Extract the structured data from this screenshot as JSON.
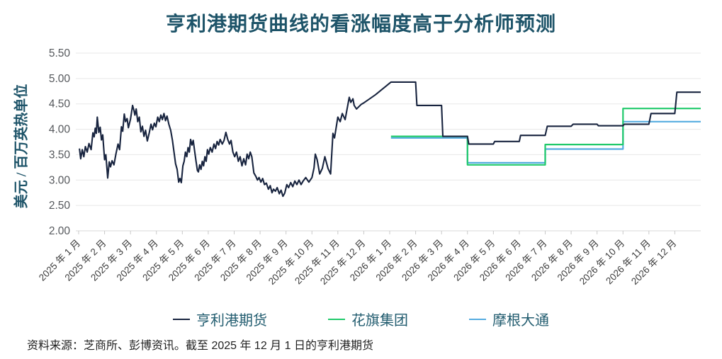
{
  "title": "亨利港期货曲线的看涨幅度高于分析师预测",
  "source_note": "资料来源：芝商所、彭博资讯。截至 2025 年 12 月 1 日的亨利港期货",
  "colors": {
    "title_teal": "#1e5469",
    "legend_text_teal": "#235d70",
    "futures_navy": "#18243f",
    "citi_green": "#1fc96a",
    "jpm_blue": "#55ace0",
    "tick_label_gray": "#55585c",
    "x_label_gray": "#3d3d3d",
    "grid_gray": "#e7e7e7"
  },
  "chart_data": {
    "type": "line",
    "title": "亨利港期货曲线的看涨幅度高于分析师预测",
    "ylabel": "美元 / 百万英热单位",
    "ylim": [
      2.0,
      5.5
    ],
    "yticks": [
      5.5,
      5.0,
      4.5,
      4.0,
      3.5,
      3.0,
      2.5,
      2.0
    ],
    "grid": "horizontal",
    "legend_position": "bottom",
    "x_scale": "month_index_0_equals_2025_01",
    "x_categories": [
      "2025 年 1 月",
      "2025 年 2 月",
      "2025 年 3 月",
      "2025 年 4 月",
      "2025 年 5 月",
      "2025 年 6 月",
      "2025 年 7 月",
      "2025 年 8 月",
      "2025 年 9 月",
      "2025 年 10 月",
      "2025 年 11 月",
      "2025 年 12 月",
      "2026 年 1 月",
      "2026 年 2 月",
      "2026 年 3 月",
      "2026 年 4 月",
      "2026 年 5 月",
      "2026 年 6 月",
      "2026 年 7 月",
      "2026 年 8 月",
      "2026 年 9 月",
      "2026 年 10 月",
      "2026 年 11 月",
      "2026 年 12 月"
    ],
    "series": [
      {
        "name": "亨利港期货",
        "color": "#18243f",
        "width": 2.1,
        "points": [
          [
            0.03,
            3.62
          ],
          [
            0.08,
            3.42
          ],
          [
            0.14,
            3.6
          ],
          [
            0.2,
            3.46
          ],
          [
            0.26,
            3.66
          ],
          [
            0.33,
            3.55
          ],
          [
            0.4,
            3.72
          ],
          [
            0.48,
            3.6
          ],
          [
            0.55,
            3.93
          ],
          [
            0.6,
            3.85
          ],
          [
            0.64,
            4.02
          ],
          [
            0.68,
            3.92
          ],
          [
            0.72,
            4.24
          ],
          [
            0.78,
            3.94
          ],
          [
            0.83,
            4.04
          ],
          [
            0.88,
            3.79
          ],
          [
            0.93,
            3.89
          ],
          [
            1.0,
            3.4
          ],
          [
            1.05,
            3.5
          ],
          [
            1.12,
            3.04
          ],
          [
            1.18,
            3.36
          ],
          [
            1.23,
            3.26
          ],
          [
            1.29,
            3.38
          ],
          [
            1.36,
            3.3
          ],
          [
            1.44,
            3.52
          ],
          [
            1.52,
            3.71
          ],
          [
            1.58,
            3.6
          ],
          [
            1.65,
            4.05
          ],
          [
            1.7,
            3.96
          ],
          [
            1.76,
            4.3
          ],
          [
            1.81,
            4.15
          ],
          [
            1.87,
            4.21
          ],
          [
            1.92,
            4.03
          ],
          [
            2.0,
            4.2
          ],
          [
            2.08,
            4.47
          ],
          [
            2.13,
            4.38
          ],
          [
            2.17,
            4.28
          ],
          [
            2.22,
            4.4
          ],
          [
            2.28,
            4.15
          ],
          [
            2.34,
            4.24
          ],
          [
            2.4,
            3.95
          ],
          [
            2.46,
            4.06
          ],
          [
            2.52,
            3.86
          ],
          [
            2.58,
            3.98
          ],
          [
            2.65,
            3.77
          ],
          [
            2.72,
            3.92
          ],
          [
            2.79,
            4.1
          ],
          [
            2.85,
            3.99
          ],
          [
            2.92,
            4.12
          ],
          [
            2.98,
            4.05
          ],
          [
            3.05,
            4.24
          ],
          [
            3.11,
            4.15
          ],
          [
            3.17,
            4.28
          ],
          [
            3.23,
            4.19
          ],
          [
            3.29,
            4.31
          ],
          [
            3.35,
            4.17
          ],
          [
            3.41,
            4.26
          ],
          [
            3.48,
            4.1
          ],
          [
            3.55,
            3.98
          ],
          [
            3.62,
            3.78
          ],
          [
            3.68,
            3.55
          ],
          [
            3.74,
            3.32
          ],
          [
            3.8,
            3.21
          ],
          [
            3.86,
            2.96
          ],
          [
            3.91,
            3.03
          ],
          [
            3.96,
            2.95
          ],
          [
            4.02,
            3.28
          ],
          [
            4.07,
            3.37
          ],
          [
            4.12,
            3.55
          ],
          [
            4.17,
            3.46
          ],
          [
            4.22,
            3.64
          ],
          [
            4.27,
            3.55
          ],
          [
            4.32,
            3.8
          ],
          [
            4.37,
            3.69
          ],
          [
            4.42,
            3.78
          ],
          [
            4.48,
            3.55
          ],
          [
            4.53,
            3.37
          ],
          [
            4.58,
            3.19
          ],
          [
            4.62,
            3.16
          ],
          [
            4.67,
            3.3
          ],
          [
            4.72,
            3.21
          ],
          [
            4.77,
            3.37
          ],
          [
            4.82,
            3.28
          ],
          [
            4.87,
            3.46
          ],
          [
            4.92,
            3.37
          ],
          [
            4.97,
            3.6
          ],
          [
            5.02,
            3.51
          ],
          [
            5.08,
            3.64
          ],
          [
            5.15,
            3.55
          ],
          [
            5.22,
            3.71
          ],
          [
            5.28,
            3.62
          ],
          [
            5.34,
            3.76
          ],
          [
            5.4,
            3.69
          ],
          [
            5.46,
            3.8
          ],
          [
            5.54,
            3.71
          ],
          [
            5.61,
            3.78
          ],
          [
            5.68,
            3.94
          ],
          [
            5.75,
            3.8
          ],
          [
            5.82,
            3.71
          ],
          [
            5.88,
            3.78
          ],
          [
            5.95,
            3.55
          ],
          [
            6.02,
            3.46
          ],
          [
            6.09,
            3.55
          ],
          [
            6.16,
            3.37
          ],
          [
            6.23,
            3.46
          ],
          [
            6.3,
            3.28
          ],
          [
            6.37,
            3.42
          ],
          [
            6.44,
            3.3
          ],
          [
            6.5,
            3.51
          ],
          [
            6.56,
            3.42
          ],
          [
            6.62,
            3.55
          ],
          [
            6.68,
            3.46
          ],
          [
            6.76,
            3.14
          ],
          [
            6.84,
            3.07
          ],
          [
            6.9,
            3.0
          ],
          [
            6.96,
            3.05
          ],
          [
            7.03,
            2.96
          ],
          [
            7.1,
            3.03
          ],
          [
            7.17,
            2.91
          ],
          [
            7.24,
            2.94
          ],
          [
            7.32,
            2.82
          ],
          [
            7.39,
            2.89
          ],
          [
            7.46,
            2.75
          ],
          [
            7.52,
            2.82
          ],
          [
            7.59,
            2.78
          ],
          [
            7.66,
            2.85
          ],
          [
            7.74,
            2.73
          ],
          [
            7.81,
            2.8
          ],
          [
            7.88,
            2.68
          ],
          [
            7.95,
            2.74
          ],
          [
            8.03,
            2.91
          ],
          [
            8.1,
            2.85
          ],
          [
            8.18,
            2.95
          ],
          [
            8.26,
            2.87
          ],
          [
            8.34,
            2.98
          ],
          [
            8.42,
            2.91
          ],
          [
            8.5,
            3.0
          ],
          [
            8.58,
            2.91
          ],
          [
            8.66,
            2.98
          ],
          [
            8.76,
            3.05
          ],
          [
            8.88,
            2.96
          ],
          [
            9.0,
            3.05
          ],
          [
            9.08,
            3.24
          ],
          [
            9.13,
            3.51
          ],
          [
            9.2,
            3.4
          ],
          [
            9.3,
            3.12
          ],
          [
            9.4,
            3.23
          ],
          [
            9.5,
            3.46
          ],
          [
            9.62,
            3.23
          ],
          [
            9.72,
            3.12
          ],
          [
            9.81,
            3.92
          ],
          [
            9.87,
            3.83
          ],
          [
            10.0,
            4.24
          ],
          [
            10.09,
            4.15
          ],
          [
            10.17,
            4.31
          ],
          [
            10.28,
            4.19
          ],
          [
            10.44,
            4.63
          ],
          [
            10.5,
            4.53
          ],
          [
            10.58,
            4.6
          ],
          [
            10.63,
            4.47
          ],
          [
            10.72,
            4.4
          ],
          [
            10.9,
            4.49
          ],
          [
            11.0,
            4.52
          ],
          [
            11.45,
            4.68
          ],
          [
            12.05,
            4.93
          ],
          [
            13.0,
            4.93
          ],
          [
            13.05,
            4.47
          ],
          [
            14.0,
            4.47
          ],
          [
            14.05,
            3.86
          ],
          [
            15.0,
            3.86
          ],
          [
            15.05,
            3.71
          ],
          [
            16.0,
            3.71
          ],
          [
            16.05,
            3.76
          ],
          [
            17.0,
            3.76
          ],
          [
            17.05,
            3.88
          ],
          [
            18.0,
            3.88
          ],
          [
            18.08,
            4.06
          ],
          [
            19.0,
            4.06
          ],
          [
            19.08,
            4.1
          ],
          [
            20.0,
            4.1
          ],
          [
            20.05,
            4.07
          ],
          [
            21.0,
            4.07
          ],
          [
            21.05,
            4.1
          ],
          [
            22.0,
            4.1
          ],
          [
            22.08,
            4.31
          ],
          [
            23.0,
            4.31
          ],
          [
            23.08,
            4.73
          ],
          [
            24.0,
            4.73
          ]
        ]
      },
      {
        "name": "花旗集团",
        "color": "#1fc96a",
        "width": 2.2,
        "points": [
          [
            12.05,
            3.86
          ],
          [
            15.0,
            3.86
          ],
          [
            15.0,
            3.3
          ],
          [
            18.0,
            3.3
          ],
          [
            18.0,
            3.7
          ],
          [
            21.0,
            3.7
          ],
          [
            21.0,
            4.41
          ],
          [
            24.0,
            4.41
          ]
        ]
      },
      {
        "name": "摩根大通",
        "color": "#55ace0",
        "width": 2.2,
        "points": [
          [
            12.05,
            3.83
          ],
          [
            15.0,
            3.83
          ],
          [
            15.0,
            3.34
          ],
          [
            18.0,
            3.34
          ],
          [
            18.0,
            3.61
          ],
          [
            21.0,
            3.61
          ],
          [
            21.0,
            4.15
          ],
          [
            24.0,
            4.15
          ]
        ]
      }
    ],
    "source": "资料来源：芝商所、彭博资讯。截至 2025 年 12 月 1 日的亨利港期货"
  }
}
